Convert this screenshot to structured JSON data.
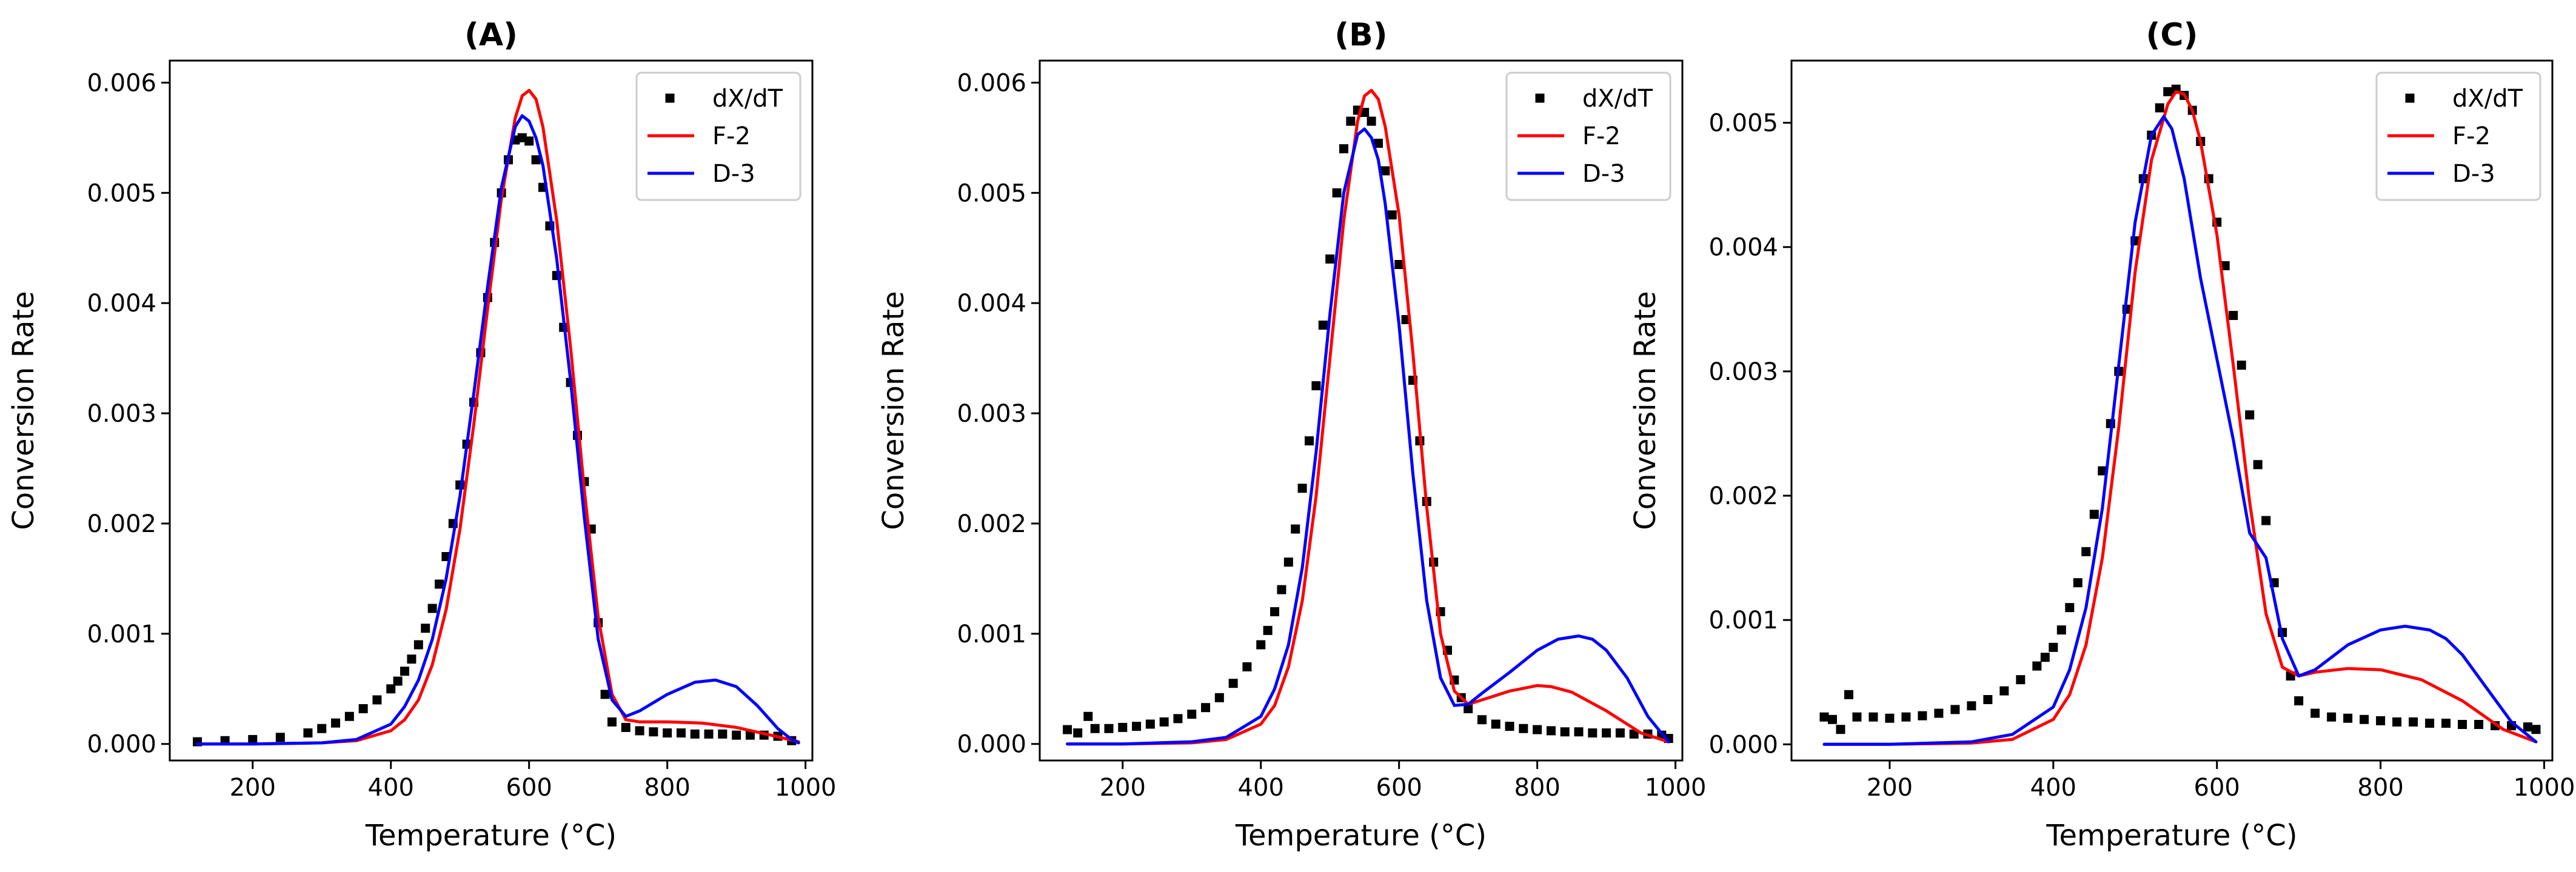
{
  "chart_data": [
    {
      "type": "scatter+line",
      "title": "(A)",
      "xlabel": "Temperature (°C)",
      "ylabel": "Conversion Rate",
      "xlim": [
        80,
        1010
      ],
      "ylim": [
        -0.00015,
        0.0062
      ],
      "xticks": [
        200,
        400,
        600,
        800,
        1000
      ],
      "yticks": [
        0.0,
        0.001,
        0.002,
        0.003,
        0.004,
        0.005,
        0.006
      ],
      "xtick_labels": [
        "200",
        "400",
        "600",
        "800",
        "1000"
      ],
      "ytick_labels": [
        "0.000",
        "0.001",
        "0.002",
        "0.003",
        "0.004",
        "0.005",
        "0.006"
      ],
      "legend_position": "upper-right",
      "grid": false,
      "series": [
        {
          "name": "dX/dT",
          "kind": "scatter",
          "color": "#000000",
          "marker": "square",
          "x": [
            120,
            160,
            200,
            240,
            280,
            300,
            320,
            340,
            360,
            380,
            400,
            410,
            420,
            430,
            440,
            450,
            460,
            470,
            480,
            490,
            500,
            510,
            520,
            530,
            540,
            550,
            560,
            570,
            580,
            590,
            600,
            610,
            620,
            630,
            640,
            650,
            660,
            670,
            680,
            690,
            700,
            710,
            720,
            740,
            760,
            780,
            800,
            820,
            840,
            860,
            880,
            900,
            920,
            940,
            960,
            980
          ],
          "y": [
            2e-05,
            3e-05,
            4e-05,
            6e-05,
            0.0001,
            0.00014,
            0.00019,
            0.00025,
            0.00032,
            0.0004,
            0.0005,
            0.00057,
            0.00066,
            0.00077,
            0.0009,
            0.00105,
            0.00123,
            0.00145,
            0.0017,
            0.002,
            0.00235,
            0.00272,
            0.0031,
            0.00355,
            0.00405,
            0.00455,
            0.005,
            0.0053,
            0.00548,
            0.0055,
            0.00547,
            0.0053,
            0.00505,
            0.0047,
            0.00425,
            0.00378,
            0.00328,
            0.0028,
            0.00238,
            0.00195,
            0.0011,
            0.00045,
            0.0002,
            0.00015,
            0.00012,
            0.00011,
            0.0001,
            0.0001,
            9e-05,
            9e-05,
            9e-05,
            8e-05,
            8e-05,
            8e-05,
            7e-05,
            3e-05
          ]
        },
        {
          "name": "F-2",
          "kind": "line",
          "color": "#ff0000",
          "x": [
            120,
            200,
            300,
            350,
            400,
            420,
            440,
            460,
            480,
            500,
            520,
            540,
            560,
            580,
            590,
            600,
            610,
            620,
            640,
            660,
            680,
            700,
            720,
            740,
            760,
            800,
            850,
            900,
            950,
            990
          ],
          "y": [
            0.0,
            0.0,
            1e-05,
            3e-05,
            0.00012,
            0.00022,
            0.0004,
            0.00072,
            0.00122,
            0.00195,
            0.0029,
            0.00395,
            0.00495,
            0.00568,
            0.00588,
            0.00593,
            0.00585,
            0.0056,
            0.00475,
            0.0036,
            0.0023,
            0.00115,
            0.00045,
            0.00022,
            0.0002,
            0.0002,
            0.00019,
            0.00015,
            8e-05,
            2e-05
          ]
        },
        {
          "name": "D-3",
          "kind": "line",
          "color": "#0000ff",
          "x": [
            120,
            200,
            300,
            350,
            400,
            420,
            440,
            460,
            480,
            500,
            520,
            540,
            560,
            580,
            590,
            600,
            610,
            620,
            640,
            660,
            680,
            700,
            720,
            740,
            760,
            800,
            840,
            870,
            900,
            930,
            960,
            980,
            990
          ],
          "y": [
            0.0,
            0.0,
            1e-05,
            4e-05,
            0.00018,
            0.00034,
            0.00058,
            0.00095,
            0.0015,
            0.00225,
            0.00318,
            0.00415,
            0.00505,
            0.0056,
            0.0057,
            0.00565,
            0.0055,
            0.00525,
            0.0044,
            0.0033,
            0.00205,
            0.00095,
            0.0004,
            0.00025,
            0.0003,
            0.00045,
            0.00056,
            0.00058,
            0.00052,
            0.00035,
            0.00014,
            4e-05,
            1e-05
          ]
        }
      ]
    },
    {
      "type": "scatter+line",
      "title": "(B)",
      "xlabel": "Temperature (°C)",
      "ylabel": "Conversion Rate",
      "xlim": [
        80,
        1010
      ],
      "ylim": [
        -0.00015,
        0.0062
      ],
      "xticks": [
        200,
        400,
        600,
        800,
        1000
      ],
      "yticks": [
        0.0,
        0.001,
        0.002,
        0.003,
        0.004,
        0.005,
        0.006
      ],
      "xtick_labels": [
        "200",
        "400",
        "600",
        "800",
        "1000"
      ],
      "ytick_labels": [
        "0.000",
        "0.001",
        "0.002",
        "0.003",
        "0.004",
        "0.005",
        "0.006"
      ],
      "legend_position": "upper-right",
      "grid": false,
      "series": [
        {
          "name": "dX/dT",
          "kind": "scatter",
          "color": "#000000",
          "marker": "square",
          "x": [
            120,
            135,
            150,
            160,
            180,
            200,
            220,
            240,
            260,
            280,
            300,
            320,
            340,
            360,
            380,
            400,
            410,
            420,
            430,
            440,
            450,
            460,
            470,
            480,
            490,
            500,
            510,
            520,
            530,
            540,
            550,
            560,
            570,
            580,
            590,
            600,
            610,
            620,
            630,
            640,
            650,
            660,
            670,
            680,
            690,
            700,
            720,
            740,
            760,
            780,
            800,
            820,
            840,
            860,
            880,
            900,
            920,
            940,
            960,
            980,
            990
          ],
          "y": [
            0.00013,
            0.0001,
            0.00025,
            0.00014,
            0.00014,
            0.00015,
            0.00016,
            0.00018,
            0.0002,
            0.00023,
            0.00027,
            0.00033,
            0.00042,
            0.00055,
            0.0007,
            0.0009,
            0.00103,
            0.0012,
            0.0014,
            0.00165,
            0.00195,
            0.00232,
            0.00275,
            0.00325,
            0.0038,
            0.0044,
            0.005,
            0.0054,
            0.00565,
            0.00575,
            0.00573,
            0.00565,
            0.00545,
            0.0052,
            0.0048,
            0.00435,
            0.00385,
            0.0033,
            0.00275,
            0.0022,
            0.00165,
            0.0012,
            0.00085,
            0.00058,
            0.00042,
            0.00032,
            0.00022,
            0.00018,
            0.00016,
            0.00014,
            0.00013,
            0.00012,
            0.00011,
            0.00011,
            0.0001,
            0.0001,
            0.0001,
            9e-05,
            9e-05,
            8e-05,
            5e-05
          ]
        },
        {
          "name": "F-2",
          "kind": "line",
          "color": "#ff0000",
          "x": [
            120,
            200,
            300,
            350,
            400,
            420,
            440,
            460,
            480,
            500,
            520,
            540,
            550,
            560,
            570,
            580,
            600,
            620,
            640,
            660,
            680,
            700,
            720,
            760,
            800,
            820,
            850,
            900,
            950,
            990
          ],
          "y": [
            0.0,
            0.0,
            1e-05,
            4e-05,
            0.00018,
            0.00035,
            0.0007,
            0.0013,
            0.00225,
            0.0035,
            0.00475,
            0.00565,
            0.00588,
            0.00593,
            0.00585,
            0.0056,
            0.0048,
            0.00355,
            0.00215,
            0.001,
            0.00048,
            0.00036,
            0.0004,
            0.00048,
            0.00053,
            0.00052,
            0.00047,
            0.0003,
            0.0001,
            2e-05
          ]
        },
        {
          "name": "D-3",
          "kind": "line",
          "color": "#0000ff",
          "x": [
            120,
            200,
            300,
            350,
            400,
            420,
            440,
            460,
            480,
            500,
            520,
            540,
            550,
            560,
            570,
            580,
            600,
            620,
            640,
            660,
            680,
            700,
            720,
            760,
            800,
            830,
            860,
            880,
            900,
            930,
            960,
            990
          ],
          "y": [
            0.0,
            0.0,
            2e-05,
            6e-05,
            0.00025,
            0.0005,
            0.0009,
            0.0016,
            0.00265,
            0.0039,
            0.005,
            0.00553,
            0.00558,
            0.0055,
            0.0053,
            0.0049,
            0.0038,
            0.00245,
            0.0013,
            0.0006,
            0.00035,
            0.00036,
            0.00046,
            0.00065,
            0.00085,
            0.00095,
            0.00098,
            0.00095,
            0.00085,
            0.0006,
            0.00025,
            2e-05
          ]
        }
      ]
    },
    {
      "type": "scatter+line",
      "title": "(C)",
      "xlabel": "Temperature (°C)",
      "ylabel": "Conversion Rate",
      "xlim": [
        80,
        1010
      ],
      "ylim": [
        -0.00013,
        0.0055
      ],
      "xticks": [
        200,
        400,
        600,
        800,
        1000
      ],
      "yticks": [
        0.0,
        0.001,
        0.002,
        0.003,
        0.004,
        0.005
      ],
      "xtick_labels": [
        "200",
        "400",
        "600",
        "800",
        "1000"
      ],
      "ytick_labels": [
        "0.000",
        "0.001",
        "0.002",
        "0.003",
        "0.004",
        "0.005"
      ],
      "legend_position": "upper-right",
      "grid": false,
      "series": [
        {
          "name": "dX/dT",
          "kind": "scatter",
          "color": "#000000",
          "marker": "square",
          "x": [
            120,
            130,
            140,
            150,
            160,
            180,
            200,
            220,
            240,
            260,
            280,
            300,
            320,
            340,
            360,
            380,
            390,
            400,
            410,
            420,
            430,
            440,
            450,
            460,
            470,
            480,
            490,
            500,
            510,
            520,
            530,
            540,
            550,
            560,
            570,
            580,
            590,
            600,
            610,
            620,
            630,
            640,
            650,
            660,
            670,
            680,
            690,
            700,
            720,
            740,
            760,
            780,
            800,
            820,
            840,
            860,
            880,
            900,
            920,
            940,
            960,
            980,
            990
          ],
          "y": [
            0.00022,
            0.0002,
            0.00012,
            0.0004,
            0.00022,
            0.00022,
            0.00021,
            0.00022,
            0.00023,
            0.00025,
            0.00028,
            0.00031,
            0.00036,
            0.00043,
            0.00052,
            0.00063,
            0.0007,
            0.00078,
            0.00092,
            0.0011,
            0.0013,
            0.00155,
            0.00185,
            0.0022,
            0.00258,
            0.003,
            0.0035,
            0.00405,
            0.00455,
            0.0049,
            0.00512,
            0.00525,
            0.00527,
            0.00522,
            0.0051,
            0.00485,
            0.00455,
            0.0042,
            0.00385,
            0.00345,
            0.00305,
            0.00265,
            0.00225,
            0.0018,
            0.0013,
            0.0009,
            0.00055,
            0.00035,
            0.00025,
            0.00022,
            0.00021,
            0.0002,
            0.00019,
            0.00018,
            0.00018,
            0.00017,
            0.00017,
            0.00016,
            0.00016,
            0.00015,
            0.00015,
            0.00014,
            0.00012
          ]
        },
        {
          "name": "F-2",
          "kind": "line",
          "color": "#ff0000",
          "x": [
            120,
            200,
            300,
            350,
            400,
            420,
            440,
            460,
            480,
            500,
            520,
            540,
            550,
            560,
            570,
            580,
            600,
            620,
            640,
            660,
            680,
            700,
            720,
            760,
            800,
            850,
            900,
            950,
            990
          ],
          "y": [
            0.0,
            0.0,
            1e-05,
            4e-05,
            0.0002,
            0.0004,
            0.0008,
            0.0015,
            0.00255,
            0.0038,
            0.0047,
            0.00515,
            0.00525,
            0.00523,
            0.0051,
            0.00485,
            0.0041,
            0.00305,
            0.00195,
            0.00105,
            0.00062,
            0.00055,
            0.00058,
            0.00061,
            0.0006,
            0.00052,
            0.00035,
            0.00012,
            2e-05
          ]
        },
        {
          "name": "D-3",
          "kind": "line",
          "color": "#0000ff",
          "x": [
            120,
            200,
            300,
            350,
            400,
            420,
            440,
            460,
            480,
            500,
            520,
            535,
            545,
            560,
            580,
            600,
            620,
            640,
            660,
            680,
            700,
            720,
            760,
            800,
            830,
            860,
            880,
            900,
            930,
            960,
            990
          ],
          "y": [
            0.0,
            0.0,
            2e-05,
            8e-05,
            0.0003,
            0.0006,
            0.0011,
            0.0019,
            0.00305,
            0.0042,
            0.0049,
            0.00505,
            0.00495,
            0.00455,
            0.00375,
            0.0031,
            0.00245,
            0.0017,
            0.0015,
            0.00085,
            0.00055,
            0.0006,
            0.0008,
            0.00092,
            0.00095,
            0.00092,
            0.00085,
            0.00072,
            0.00045,
            0.00018,
            2e-05
          ]
        }
      ]
    }
  ]
}
